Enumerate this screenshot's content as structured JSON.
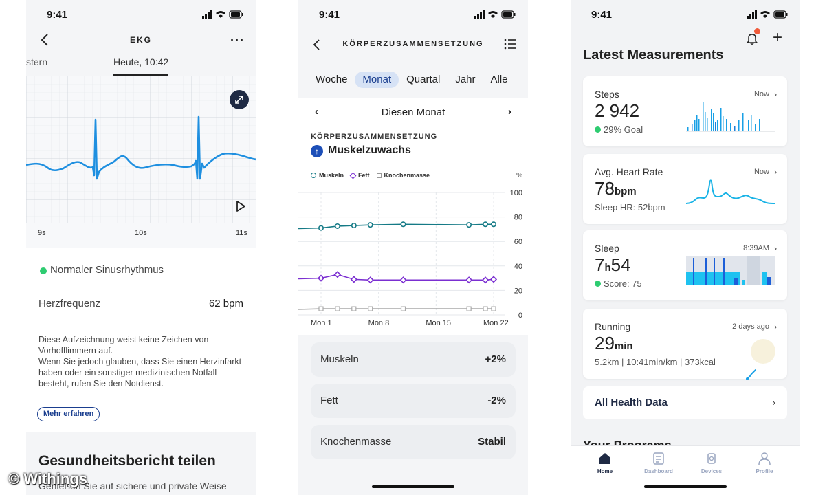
{
  "status_time": "9:41",
  "watermark": "© Withings",
  "ekg": {
    "title": "EKG",
    "more": "···",
    "tab_prev": "stern",
    "tab_current": "Heute, 10:42",
    "ticks": [
      "9s",
      "10s",
      "11s"
    ],
    "rhythm": "Normaler Sinusrhythmus",
    "hr_label": "Herzfrequenz",
    "hr_value": "62 bpm",
    "desc": [
      "Diese Aufzeichnung weist keine Zeichen von Vorhofflimmern auf.",
      "Wenn Sie jedoch glauben, dass Sie einen Herzinfarkt haben oder ein sonstiger medizinischen Notfall besteht, rufen Sie den Notdienst."
    ],
    "more_btn": "Mehr erfahren",
    "share_title": "Gesundheitsbericht teilen",
    "share_text": "Genießen Sie auf sichere und private Weise"
  },
  "body": {
    "title": "KÖRPERZUSAMMENSETZUNG",
    "tabs": [
      "Woche",
      "Monat",
      "Quartal",
      "Jahr",
      "Alle"
    ],
    "active_tab": "Monat",
    "month_title": "Diesen Monat",
    "nav_prev": "‹",
    "nav_next": "›",
    "section_label": "KÖRPERZUSAMMENSETZUNG",
    "headline": "Muskelzuwachs",
    "legend": [
      "Muskeln",
      "Fett",
      "Knochenmasse"
    ],
    "unit": "%",
    "stats": [
      {
        "name": "Muskeln",
        "value": "+2%"
      },
      {
        "name": "Fett",
        "value": "-2%"
      },
      {
        "name": "Knochenmasse",
        "value": "Stabil"
      }
    ]
  },
  "chart_data": {
    "type": "line",
    "ylim": [
      0,
      100
    ],
    "yticks": [
      "100",
      "80",
      "60",
      "40",
      "20",
      "0"
    ],
    "xticks": [
      {
        "label": "Mon 1",
        "day": 1
      },
      {
        "label": "Mon 8",
        "day": 8
      },
      {
        "label": "Mon 15",
        "day": 15
      },
      {
        "label": "Mon 22",
        "day": 22
      }
    ],
    "grid": true,
    "legend_position": "top-left",
    "colors": {
      "muskeln": "#157a86",
      "fett": "#7b2fd1",
      "knochen": "#a9a9a9"
    },
    "series": [
      {
        "name": "Muskeln",
        "days": [
          1,
          3,
          5,
          7,
          11,
          19,
          21,
          22
        ],
        "values": [
          71,
          72.5,
          73,
          73.5,
          74,
          73.5,
          74,
          74
        ]
      },
      {
        "name": "Fett",
        "days": [
          1,
          3,
          5,
          7,
          11,
          19,
          21,
          22
        ],
        "values": [
          30,
          33,
          29,
          28.5,
          28.5,
          28.5,
          28.5,
          29
        ]
      },
      {
        "name": "Knochenmasse",
        "days": [
          1,
          3,
          5,
          7,
          11,
          19,
          21,
          22
        ],
        "values": [
          5,
          5,
          5,
          5,
          5,
          5,
          5,
          5
        ]
      }
    ]
  },
  "dashboard": {
    "title": "Latest Measurements",
    "cards": {
      "steps": {
        "label": "Steps",
        "value": "2 942",
        "sub": "29% Goal",
        "when": "Now"
      },
      "heart": {
        "label": "Avg. Heart Rate",
        "value": "78",
        "unit": "bpm",
        "sub": "Sleep HR: 52bpm",
        "when": "Now"
      },
      "sleep": {
        "label": "Sleep",
        "hours": "7",
        "h": "h",
        "minutes": "54",
        "sub": "Score: 75",
        "when": "8:39AM"
      },
      "running": {
        "label": "Running",
        "value": "29",
        "unit": "min",
        "sub": "5.2km | 10:41min/km | 373kcal",
        "when": "2 days ago"
      }
    },
    "all_data": "All Health Data",
    "partial_heading": "Your Programs",
    "tabs": [
      "Home",
      "Dashboard",
      "Devices",
      "Profile"
    ],
    "accent": "#1f2a44",
    "chart_blue": "#19a0e6"
  }
}
